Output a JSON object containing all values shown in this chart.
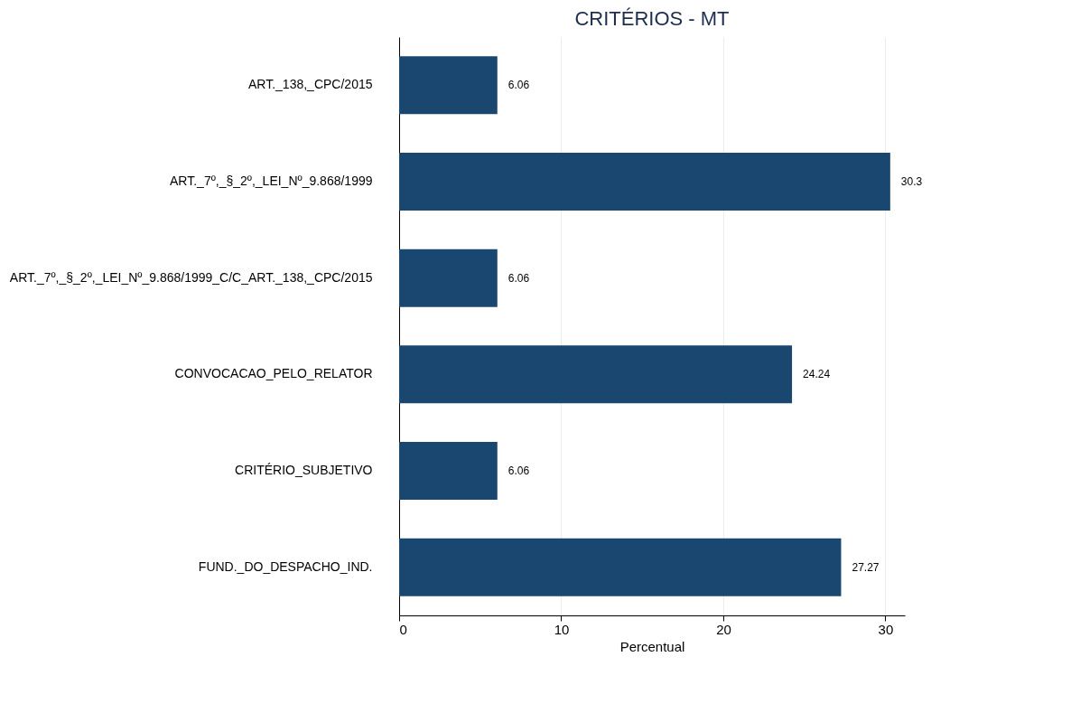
{
  "chart_data": {
    "type": "bar",
    "title": "CRITÉRIOS - MT",
    "xlabel": "Percentual",
    "orientation": "horizontal",
    "categories": [
      "ART._138,_CPC/2015",
      "ART._7º,_§_2º,_LEI_Nº_9.868/1999",
      "ART._7º,_§_2º,_LEI_Nº_9.868/1999_C/C_ART._138,_CPC/2015",
      "CONVOCACAO_PELO_RELATOR",
      "CRITÉRIO_SUBJETIVO",
      "FUND._DO_DESPACHO_IND."
    ],
    "values": [
      6.06,
      30.3,
      6.06,
      24.24,
      6.06,
      27.27
    ],
    "color": "#1a476f",
    "xlim": [
      0,
      31.2
    ],
    "xticks": [
      0,
      10,
      20,
      30
    ],
    "grid": "x",
    "data_labels": true
  }
}
